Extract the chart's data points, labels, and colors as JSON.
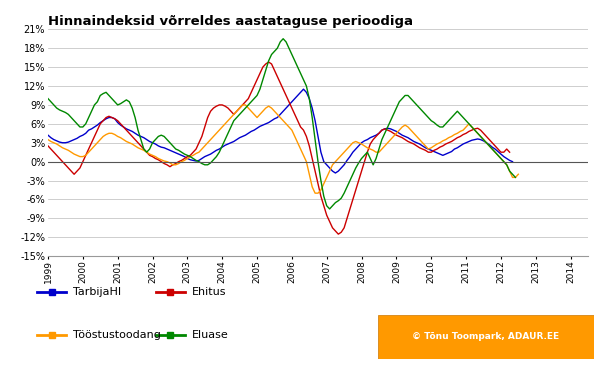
{
  "title": "Hinnaindeksid võrreldes aastataguse perioodiga",
  "ylim": [
    -15,
    21
  ],
  "yticks": [
    -15,
    -12,
    -9,
    -6,
    -3,
    0,
    3,
    6,
    9,
    12,
    15,
    18,
    21
  ],
  "xlim": [
    1999.0,
    2014.5
  ],
  "background_color": "#ffffff",
  "grid_color": "#bbbbbb",
  "legend": [
    {
      "label": "TarbijaHI",
      "color": "#0000cc"
    },
    {
      "label": "Ehitus",
      "color": "#cc0000"
    },
    {
      "label": "Tööstustoodang",
      "color": "#ff9900"
    },
    {
      "label": "Eluase",
      "color": "#008800"
    }
  ],
  "watermark": "© Tõnu Toompark, ADAUR.EE",
  "tarbija": [
    4.2,
    3.8,
    3.5,
    3.3,
    3.1,
    3.0,
    3.0,
    3.1,
    3.3,
    3.5,
    3.7,
    4.0,
    4.2,
    4.5,
    5.0,
    5.2,
    5.5,
    5.8,
    6.2,
    6.5,
    6.8,
    7.0,
    7.0,
    6.8,
    6.2,
    5.8,
    5.5,
    5.2,
    5.0,
    4.8,
    4.5,
    4.2,
    4.0,
    3.8,
    3.5,
    3.2,
    3.0,
    2.8,
    2.5,
    2.3,
    2.2,
    2.0,
    1.8,
    1.6,
    1.4,
    1.2,
    1.0,
    0.8,
    0.5,
    0.3,
    0.2,
    0.1,
    0.2,
    0.5,
    0.8,
    1.0,
    1.2,
    1.5,
    1.8,
    2.0,
    2.3,
    2.6,
    2.8,
    3.0,
    3.2,
    3.5,
    3.8,
    4.0,
    4.2,
    4.5,
    4.8,
    5.0,
    5.3,
    5.6,
    5.8,
    6.0,
    6.2,
    6.5,
    6.8,
    7.0,
    7.5,
    8.0,
    8.5,
    9.0,
    9.5,
    10.0,
    10.5,
    11.0,
    11.5,
    11.0,
    10.0,
    8.5,
    6.5,
    4.0,
    1.5,
    0.0,
    -0.5,
    -1.0,
    -1.5,
    -1.8,
    -1.5,
    -1.0,
    -0.5,
    0.2,
    0.8,
    1.5,
    2.0,
    2.5,
    3.0,
    3.3,
    3.5,
    3.8,
    4.0,
    4.2,
    4.5,
    5.0,
    5.2,
    5.3,
    5.2,
    5.0,
    4.8,
    4.5,
    4.2,
    4.0,
    3.8,
    3.5,
    3.2,
    3.0,
    2.8,
    2.5,
    2.2,
    2.0,
    1.8,
    1.6,
    1.4,
    1.2,
    1.0,
    1.2,
    1.4,
    1.6,
    2.0,
    2.2,
    2.5,
    2.8,
    3.0,
    3.2,
    3.4,
    3.5,
    3.6,
    3.5,
    3.3,
    3.0,
    2.7,
    2.3,
    2.0,
    1.6,
    1.2,
    0.8,
    0.5,
    0.2,
    0.0
  ],
  "ehitus": [
    2.5,
    2.0,
    1.5,
    1.0,
    0.5,
    0.0,
    -0.5,
    -1.0,
    -1.5,
    -2.0,
    -1.5,
    -1.0,
    0.0,
    1.0,
    2.0,
    3.0,
    4.0,
    5.0,
    6.0,
    6.5,
    7.0,
    7.2,
    7.0,
    6.8,
    6.5,
    6.0,
    5.5,
    5.0,
    4.5,
    4.0,
    3.5,
    3.0,
    2.5,
    2.0,
    1.5,
    1.0,
    0.8,
    0.5,
    0.3,
    0.0,
    -0.3,
    -0.5,
    -0.8,
    -0.5,
    -0.3,
    0.0,
    0.2,
    0.5,
    0.8,
    1.0,
    1.5,
    2.0,
    3.0,
    4.0,
    5.5,
    7.0,
    8.0,
    8.5,
    8.8,
    9.0,
    9.0,
    8.8,
    8.5,
    8.0,
    7.5,
    8.0,
    8.5,
    9.0,
    9.5,
    10.0,
    11.0,
    12.0,
    13.0,
    14.0,
    15.0,
    15.5,
    15.8,
    15.5,
    14.5,
    13.5,
    12.5,
    11.5,
    10.5,
    9.5,
    8.5,
    7.5,
    6.5,
    5.5,
    5.0,
    4.0,
    2.5,
    0.5,
    -1.5,
    -3.5,
    -5.5,
    -7.0,
    -8.5,
    -9.5,
    -10.5,
    -11.0,
    -11.5,
    -11.2,
    -10.5,
    -9.0,
    -7.5,
    -6.0,
    -4.5,
    -3.0,
    -1.5,
    0.0,
    1.5,
    2.8,
    3.5,
    4.0,
    4.5,
    5.0,
    5.2,
    5.0,
    4.8,
    4.5,
    4.2,
    4.0,
    3.8,
    3.5,
    3.2,
    3.0,
    2.8,
    2.5,
    2.2,
    2.0,
    1.8,
    1.5,
    1.5,
    1.8,
    2.0,
    2.3,
    2.5,
    2.8,
    3.0,
    3.2,
    3.5,
    3.8,
    4.0,
    4.3,
    4.5,
    4.8,
    5.0,
    5.2,
    5.3,
    5.0,
    4.5,
    4.0,
    3.5,
    3.0,
    2.5,
    2.0,
    1.5,
    1.5,
    2.0,
    1.5
  ],
  "toodang": [
    3.5,
    3.2,
    3.0,
    2.8,
    2.5,
    2.2,
    2.0,
    1.8,
    1.5,
    1.2,
    1.0,
    0.8,
    0.8,
    1.0,
    1.5,
    2.0,
    2.5,
    3.0,
    3.5,
    4.0,
    4.3,
    4.5,
    4.5,
    4.3,
    4.0,
    3.8,
    3.5,
    3.2,
    3.0,
    2.8,
    2.5,
    2.2,
    2.0,
    1.8,
    1.5,
    1.2,
    1.0,
    0.8,
    0.5,
    0.3,
    0.1,
    0.0,
    -0.2,
    -0.5,
    -0.5,
    -0.3,
    0.0,
    0.2,
    0.5,
    0.8,
    1.0,
    1.3,
    1.5,
    2.0,
    2.5,
    3.0,
    3.5,
    4.0,
    4.5,
    5.0,
    5.5,
    6.0,
    6.5,
    7.0,
    7.5,
    8.0,
    8.5,
    9.0,
    9.0,
    8.5,
    8.0,
    7.5,
    7.0,
    7.5,
    8.0,
    8.5,
    8.8,
    8.5,
    8.0,
    7.5,
    7.0,
    6.5,
    6.0,
    5.5,
    5.0,
    4.0,
    3.0,
    2.0,
    1.0,
    0.0,
    -2.0,
    -4.0,
    -5.0,
    -5.0,
    -4.5,
    -3.5,
    -2.5,
    -1.5,
    -0.5,
    0.0,
    0.5,
    1.0,
    1.5,
    2.0,
    2.5,
    3.0,
    3.2,
    3.0,
    2.8,
    2.5,
    2.2,
    2.0,
    1.8,
    1.5,
    1.5,
    2.0,
    2.5,
    3.0,
    3.5,
    4.0,
    4.5,
    5.0,
    5.5,
    5.8,
    5.5,
    5.0,
    4.5,
    4.0,
    3.5,
    3.0,
    2.5,
    2.0,
    2.2,
    2.5,
    2.8,
    3.0,
    3.3,
    3.5,
    3.8,
    4.0,
    4.3,
    4.5,
    4.8,
    5.0,
    5.5,
    6.0,
    5.5,
    5.0,
    4.5,
    4.0,
    3.5,
    3.0,
    2.5,
    2.0,
    1.5,
    1.0,
    0.5,
    0.0,
    -0.5,
    -1.5,
    -2.5,
    -2.5,
    -2.0
  ],
  "eluase": [
    10.0,
    9.5,
    9.0,
    8.5,
    8.2,
    8.0,
    7.8,
    7.5,
    7.0,
    6.5,
    6.0,
    5.5,
    5.5,
    6.0,
    7.0,
    8.0,
    9.0,
    9.5,
    10.5,
    10.8,
    11.0,
    10.5,
    10.0,
    9.5,
    9.0,
    9.2,
    9.5,
    9.8,
    9.5,
    8.5,
    7.0,
    5.0,
    3.5,
    2.0,
    1.5,
    2.0,
    3.0,
    3.5,
    4.0,
    4.2,
    4.0,
    3.5,
    3.0,
    2.5,
    2.0,
    1.8,
    1.5,
    1.2,
    1.0,
    0.8,
    0.5,
    0.2,
    0.0,
    -0.3,
    -0.5,
    -0.5,
    -0.2,
    0.3,
    0.8,
    1.5,
    2.5,
    3.5,
    4.5,
    5.5,
    6.5,
    7.0,
    7.5,
    8.0,
    8.5,
    9.0,
    9.5,
    10.0,
    10.5,
    11.5,
    13.0,
    14.5,
    16.0,
    17.0,
    17.5,
    18.0,
    19.0,
    19.5,
    19.0,
    18.0,
    17.0,
    16.0,
    15.0,
    14.0,
    13.0,
    12.0,
    10.0,
    7.0,
    3.5,
    0.0,
    -3.0,
    -5.5,
    -7.0,
    -7.5,
    -7.0,
    -6.5,
    -6.2,
    -5.8,
    -5.0,
    -4.0,
    -3.0,
    -2.0,
    -1.0,
    -0.2,
    0.5,
    1.0,
    1.5,
    0.5,
    -0.5,
    0.5,
    2.0,
    3.5,
    4.5,
    5.5,
    6.5,
    7.5,
    8.5,
    9.5,
    10.0,
    10.5,
    10.5,
    10.0,
    9.5,
    9.0,
    8.5,
    8.0,
    7.5,
    7.0,
    6.5,
    6.2,
    5.8,
    5.5,
    5.5,
    6.0,
    6.5,
    7.0,
    7.5,
    8.0,
    7.5,
    7.0,
    6.5,
    6.0,
    5.5,
    5.0,
    4.5,
    4.0,
    3.5,
    3.0,
    2.5,
    2.0,
    1.5,
    1.0,
    0.5,
    0.0,
    -0.5,
    -1.5,
    -2.0,
    -2.5
  ]
}
